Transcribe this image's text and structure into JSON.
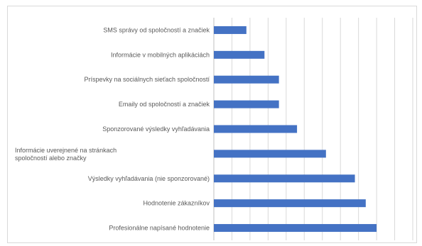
{
  "chart_data": {
    "type": "bar",
    "orientation": "horizontal",
    "categories": [
      "SMS správy od spoločností a značiek",
      "Informácie v mobilných aplikáciách",
      "Príspevky na sociálnych sieťach spoločností",
      "Emaily od spoločností a značiek",
      "Sponzorované výsledky vyhľadávania",
      "Informácie uverejnené na stránkach spoločností alebo značky",
      "Výsledky vyhľadávania (nie sponzorované)",
      "Hodnotenie zákazníkov",
      "Profesionálne napísané hodnotenie"
    ],
    "values": [
      9,
      14,
      18,
      18,
      23,
      31,
      39,
      42,
      45
    ],
    "xlim": [
      0,
      55
    ],
    "grid": true,
    "legend": "none",
    "title": "",
    "xlabel": "",
    "ylabel": "",
    "bar_color": "#4472c4",
    "grid_color": "#d9d9d9"
  }
}
